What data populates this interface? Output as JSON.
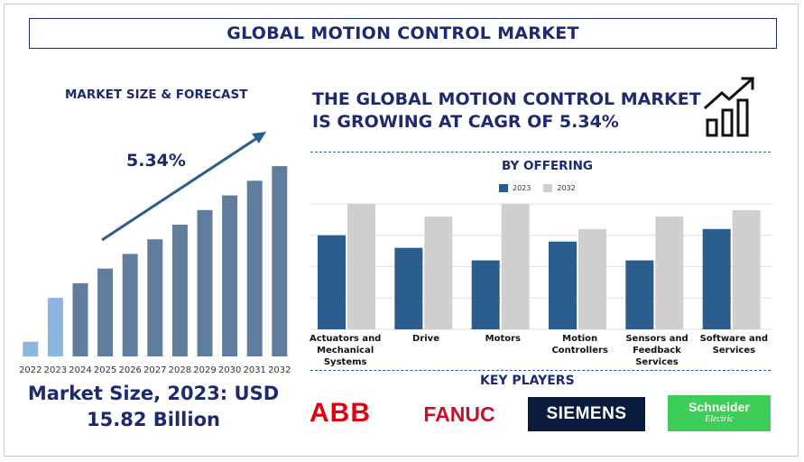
{
  "header": {
    "title": "GLOBAL MOTION CONTROL MARKET"
  },
  "left": {
    "heading": "MARKET SIZE & FORECAST",
    "cagr_label": "5.34%",
    "market_size_line1": "Market Size, 2023: USD",
    "market_size_line2": "15.82 Billion"
  },
  "right": {
    "headline_line1": "THE GLOBAL MOTION CONTROL MARKET",
    "headline_line2": "IS GROWING AT CAGR OF 5.34%",
    "growth_icon": "growth-chart-icon",
    "key_players_title": "KEY PLAYERS",
    "key_players": [
      "ABB",
      "FANUC",
      "SIEMENS",
      "Schneider",
      "Electric"
    ]
  },
  "colors": {
    "navy": "#1e2a6e",
    "bar_forecast": "#607d9d",
    "bar_light": "#8bb6e2",
    "series_2023": "#2b5e8e",
    "series_2032": "#cfcfcf",
    "abb_red": "#e3000f",
    "siemens_bg": "#0b1b3d",
    "schneider_green": "#3dcd58"
  },
  "chart_data": [
    {
      "type": "bar",
      "title": "MARKET SIZE & FORECAST",
      "categories": [
        "2022",
        "2023",
        "2024",
        "2025",
        "2026",
        "2027",
        "2028",
        "2029",
        "2030",
        "2031",
        "2032"
      ],
      "values": [
        1.0,
        4.0,
        5.0,
        6.0,
        7.0,
        8.0,
        9.0,
        10.0,
        11.0,
        12.0,
        13.0
      ],
      "highlight": [
        "2022",
        "2023"
      ],
      "annotation": "5.34%",
      "ylim": [
        0,
        13.5
      ],
      "grid": false,
      "legend": "none"
    },
    {
      "type": "bar",
      "title": "BY OFFERING",
      "categories": [
        [
          "Actuators and",
          "Mechanical",
          "Systems"
        ],
        [
          "Drive"
        ],
        [
          "Motors"
        ],
        [
          "Motion",
          "Controllers"
        ],
        [
          "Sensors and",
          "Feedback",
          "Services"
        ],
        [
          "Software and",
          "Services"
        ]
      ],
      "series": [
        {
          "name": "2023",
          "values": [
            3.0,
            2.6,
            2.2,
            2.8,
            2.2,
            3.2
          ]
        },
        {
          "name": "2032",
          "values": [
            4.0,
            3.6,
            4.0,
            3.2,
            3.6,
            3.8
          ]
        }
      ],
      "ylim": [
        0,
        4.0
      ],
      "grid": true,
      "legend": "top-center"
    }
  ]
}
